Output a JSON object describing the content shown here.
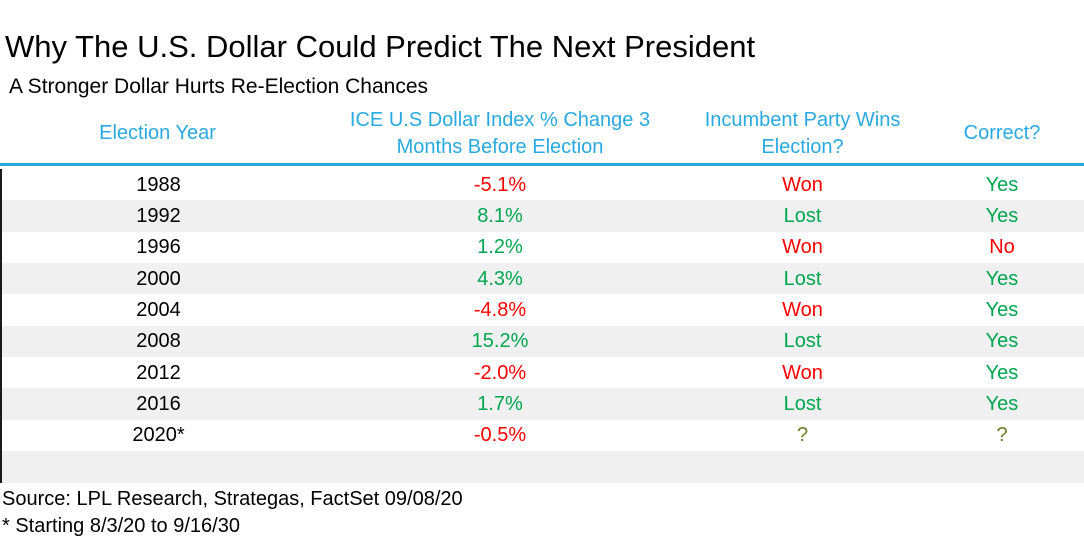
{
  "title": "Why The U.S. Dollar Could Predict The Next President",
  "subtitle": "A Stronger Dollar Hurts Re-Election Chances",
  "colors": {
    "header_blue": "#29A9E1",
    "positive_green": "#00A651",
    "negative_red": "#FE0000",
    "unknown_olive": "#6E7B29",
    "row_alt_gray": "#F0F0F0"
  },
  "chart_data": {
    "type": "table",
    "columns": [
      "Election Year",
      "ICE U.S Dollar Index % Change 3 Months Before Election",
      "Incumbent Party Wins Election?",
      "Correct?"
    ],
    "column_keys": [
      "year",
      "pct-change",
      "incumbent-result",
      "correct"
    ],
    "rows": [
      {
        "cells": [
          {
            "text": "1988",
            "color": "black"
          },
          {
            "text": "-5.1%",
            "color": "red"
          },
          {
            "text": "Won",
            "color": "red"
          },
          {
            "text": "Yes",
            "color": "green"
          }
        ]
      },
      {
        "cells": [
          {
            "text": "1992",
            "color": "black"
          },
          {
            "text": "8.1%",
            "color": "green"
          },
          {
            "text": "Lost",
            "color": "green"
          },
          {
            "text": "Yes",
            "color": "green"
          }
        ]
      },
      {
        "cells": [
          {
            "text": "1996",
            "color": "black"
          },
          {
            "text": "1.2%",
            "color": "green"
          },
          {
            "text": "Won",
            "color": "red"
          },
          {
            "text": "No",
            "color": "red"
          }
        ]
      },
      {
        "cells": [
          {
            "text": "2000",
            "color": "black"
          },
          {
            "text": "4.3%",
            "color": "green"
          },
          {
            "text": "Lost",
            "color": "green"
          },
          {
            "text": "Yes",
            "color": "green"
          }
        ]
      },
      {
        "cells": [
          {
            "text": "2004",
            "color": "black"
          },
          {
            "text": "-4.8%",
            "color": "red"
          },
          {
            "text": "Won",
            "color": "red"
          },
          {
            "text": "Yes",
            "color": "green"
          }
        ]
      },
      {
        "cells": [
          {
            "text": "2008",
            "color": "black"
          },
          {
            "text": "15.2%",
            "color": "green"
          },
          {
            "text": "Lost",
            "color": "green"
          },
          {
            "text": "Yes",
            "color": "green"
          }
        ]
      },
      {
        "cells": [
          {
            "text": "2012",
            "color": "black"
          },
          {
            "text": "-2.0%",
            "color": "red"
          },
          {
            "text": "Won",
            "color": "red"
          },
          {
            "text": "Yes",
            "color": "green"
          }
        ]
      },
      {
        "cells": [
          {
            "text": "2016",
            "color": "black"
          },
          {
            "text": "1.7%",
            "color": "green"
          },
          {
            "text": "Lost",
            "color": "green"
          },
          {
            "text": "Yes",
            "color": "green"
          }
        ]
      },
      {
        "cells": [
          {
            "text": "2020*",
            "color": "black"
          },
          {
            "text": "-0.5%",
            "color": "red"
          },
          {
            "text": "?",
            "color": "olive"
          },
          {
            "text": "?",
            "color": "olive"
          }
        ]
      }
    ]
  },
  "footer": {
    "source": "Source: LPL Research, Strategas, FactSet 09/08/20",
    "note": "* Starting 8/3/20 to 9/16/30"
  }
}
